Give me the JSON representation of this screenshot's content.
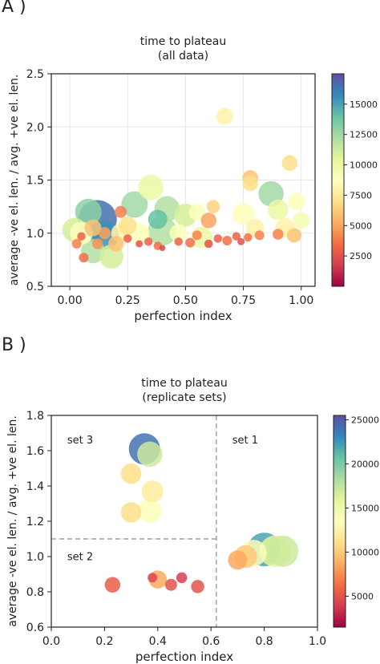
{
  "panels": [
    {
      "label": "A )"
    },
    {
      "label": "B )"
    }
  ],
  "chart_data": [
    {
      "type": "scatter",
      "title": "time to plateau",
      "subtitle": "(all data)",
      "xlabel": "perfection index",
      "ylabel": "average -ve el. len. / avg. +ve el. len.",
      "xlim": [
        -0.08,
        1.06
      ],
      "ylim": [
        0.5,
        2.5
      ],
      "xticks": [
        "0.00",
        "0.25",
        "0.50",
        "0.75",
        "1.00"
      ],
      "xtick_values": [
        0,
        0.25,
        0.5,
        0.75,
        1.0
      ],
      "yticks": [
        "0.5",
        "1.0",
        "1.5",
        "2.0",
        "2.5"
      ],
      "ytick_values": [
        0.5,
        1.0,
        1.5,
        2.0,
        2.5
      ],
      "colorbar": {
        "min": 0,
        "max": 17500,
        "ticks": [
          "2500",
          "5000",
          "7500",
          "10000",
          "12500",
          "15000"
        ],
        "tick_values": [
          2500,
          5000,
          7500,
          10000,
          12500,
          15000
        ],
        "colormap": "Spectral"
      },
      "grid": true,
      "points": [
        {
          "x": 0.12,
          "y": 1.13,
          "c": 16500,
          "s": 3.2
        },
        {
          "x": 0.15,
          "y": 0.98,
          "c": 15500,
          "s": 2.4
        },
        {
          "x": 0.08,
          "y": 1.2,
          "c": 13000,
          "s": 2.2
        },
        {
          "x": 0.02,
          "y": 1.03,
          "c": 11000,
          "s": 2.0
        },
        {
          "x": 0.05,
          "y": 1.0,
          "c": 9000,
          "s": 1.9
        },
        {
          "x": 0.1,
          "y": 0.83,
          "c": 12000,
          "s": 2.0
        },
        {
          "x": 0.18,
          "y": 0.78,
          "c": 11000,
          "s": 2.0
        },
        {
          "x": 0.2,
          "y": 0.9,
          "c": 6000,
          "s": 1.3
        },
        {
          "x": 0.28,
          "y": 1.27,
          "c": 12500,
          "s": 2.2
        },
        {
          "x": 0.35,
          "y": 1.43,
          "c": 10000,
          "s": 2.1
        },
        {
          "x": 0.38,
          "y": 1.13,
          "c": 14000,
          "s": 1.6
        },
        {
          "x": 0.42,
          "y": 1.23,
          "c": 12000,
          "s": 2.1
        },
        {
          "x": 0.4,
          "y": 1.02,
          "c": 12000,
          "s": 2.4
        },
        {
          "x": 0.3,
          "y": 1.0,
          "c": 9000,
          "s": 1.7
        },
        {
          "x": 0.25,
          "y": 1.07,
          "c": 7000,
          "s": 1.5
        },
        {
          "x": 0.22,
          "y": 1.2,
          "c": 4000,
          "s": 1.0
        },
        {
          "x": 0.5,
          "y": 1.17,
          "c": 11000,
          "s": 1.9
        },
        {
          "x": 0.55,
          "y": 1.2,
          "c": 9000,
          "s": 1.4
        },
        {
          "x": 0.6,
          "y": 1.12,
          "c": 5000,
          "s": 1.3
        },
        {
          "x": 0.62,
          "y": 1.25,
          "c": 6500,
          "s": 1.1
        },
        {
          "x": 0.57,
          "y": 0.96,
          "c": 10000,
          "s": 1.8
        },
        {
          "x": 0.67,
          "y": 2.1,
          "c": 8000,
          "s": 1.4
        },
        {
          "x": 0.78,
          "y": 1.52,
          "c": 6000,
          "s": 1.3
        },
        {
          "x": 0.78,
          "y": 1.47,
          "c": 7000,
          "s": 1.3
        },
        {
          "x": 0.87,
          "y": 1.37,
          "c": 12500,
          "s": 2.1
        },
        {
          "x": 0.95,
          "y": 1.66,
          "c": 7000,
          "s": 1.3
        },
        {
          "x": 0.98,
          "y": 1.3,
          "c": 9000,
          "s": 1.4
        },
        {
          "x": 0.9,
          "y": 1.22,
          "c": 10000,
          "s": 1.7
        },
        {
          "x": 1.0,
          "y": 1.12,
          "c": 9500,
          "s": 1.4
        },
        {
          "x": 0.93,
          "y": 1.05,
          "c": 8000,
          "s": 1.6
        },
        {
          "x": 0.75,
          "y": 1.18,
          "c": 9000,
          "s": 1.8
        },
        {
          "x": 0.8,
          "y": 1.05,
          "c": 8000,
          "s": 1.5
        },
        {
          "x": 0.97,
          "y": 0.98,
          "c": 6000,
          "s": 1.2
        },
        {
          "x": 0.9,
          "y": 0.99,
          "c": 4000,
          "s": 0.9
        },
        {
          "x": 0.05,
          "y": 0.97,
          "c": 3000,
          "s": 0.7
        },
        {
          "x": 0.03,
          "y": 0.9,
          "c": 4000,
          "s": 0.8
        },
        {
          "x": 0.06,
          "y": 0.77,
          "c": 3500,
          "s": 0.8
        },
        {
          "x": 0.12,
          "y": 0.9,
          "c": 4500,
          "s": 0.9
        },
        {
          "x": 0.15,
          "y": 1.0,
          "c": 5000,
          "s": 1.0
        },
        {
          "x": 0.25,
          "y": 0.95,
          "c": 3000,
          "s": 0.7
        },
        {
          "x": 0.3,
          "y": 0.9,
          "c": 2500,
          "s": 0.6
        },
        {
          "x": 0.34,
          "y": 0.92,
          "c": 3000,
          "s": 0.7
        },
        {
          "x": 0.38,
          "y": 0.88,
          "c": 3500,
          "s": 0.7
        },
        {
          "x": 0.4,
          "y": 0.86,
          "c": 2000,
          "s": 0.5
        },
        {
          "x": 0.47,
          "y": 0.92,
          "c": 3000,
          "s": 0.7
        },
        {
          "x": 0.52,
          "y": 0.91,
          "c": 3500,
          "s": 0.8
        },
        {
          "x": 0.55,
          "y": 0.98,
          "c": 4000,
          "s": 0.8
        },
        {
          "x": 0.6,
          "y": 0.9,
          "c": 2500,
          "s": 0.7
        },
        {
          "x": 0.64,
          "y": 0.95,
          "c": 3000,
          "s": 0.7
        },
        {
          "x": 0.68,
          "y": 0.93,
          "c": 3500,
          "s": 0.8
        },
        {
          "x": 0.72,
          "y": 0.97,
          "c": 3000,
          "s": 0.7
        },
        {
          "x": 0.74,
          "y": 0.92,
          "c": 2500,
          "s": 0.6
        },
        {
          "x": 0.77,
          "y": 0.96,
          "c": 3500,
          "s": 0.7
        },
        {
          "x": 0.82,
          "y": 0.98,
          "c": 4000,
          "s": 0.8
        },
        {
          "x": 0.22,
          "y": 1.0,
          "c": 8000,
          "s": 1.6
        },
        {
          "x": 0.47,
          "y": 1.0,
          "c": 9000,
          "s": 1.5
        },
        {
          "x": 0.1,
          "y": 1.05,
          "c": 6000,
          "s": 1.4
        }
      ]
    },
    {
      "type": "scatter",
      "title": "time to plateau",
      "subtitle": "(replicate sets)",
      "xlabel": "perfection index",
      "ylabel": "average -ve el. len. / avg. +ve el. len.",
      "xlim": [
        0.0,
        1.0
      ],
      "ylim": [
        0.6,
        1.8
      ],
      "xticks": [
        "0.0",
        "0.2",
        "0.4",
        "0.6",
        "0.8",
        "1.0"
      ],
      "xtick_values": [
        0.0,
        0.2,
        0.4,
        0.6,
        0.8,
        1.0
      ],
      "yticks": [
        "0.6",
        "0.8",
        "1.0",
        "1.2",
        "1.4",
        "1.6",
        "1.8"
      ],
      "ytick_values": [
        0.6,
        0.8,
        1.0,
        1.2,
        1.4,
        1.6,
        1.8
      ],
      "colorbar": {
        "min": 1500,
        "max": 25500,
        "ticks": [
          "5000",
          "10000",
          "15000",
          "20000",
          "25000"
        ],
        "tick_values": [
          5000,
          10000,
          15000,
          20000,
          25000
        ],
        "colormap": "Spectral"
      },
      "grid": false,
      "set_labels": [
        "set 3",
        "set 1",
        "set 2"
      ],
      "dividers": {
        "vertical_x": 0.62,
        "horizontal_y": 1.1
      },
      "points": [
        {
          "x": 0.35,
          "y": 1.61,
          "c": 24000,
          "s": 2.6
        },
        {
          "x": 0.37,
          "y": 1.58,
          "c": 17000,
          "s": 2.1
        },
        {
          "x": 0.3,
          "y": 1.47,
          "c": 11000,
          "s": 1.7
        },
        {
          "x": 0.38,
          "y": 1.37,
          "c": 12000,
          "s": 1.8
        },
        {
          "x": 0.3,
          "y": 1.25,
          "c": 11000,
          "s": 1.7
        },
        {
          "x": 0.37,
          "y": 1.26,
          "c": 14000,
          "s": 2.0
        },
        {
          "x": 0.23,
          "y": 0.84,
          "c": 5500,
          "s": 1.3
        },
        {
          "x": 0.38,
          "y": 0.88,
          "c": 4500,
          "s": 0.8
        },
        {
          "x": 0.4,
          "y": 0.87,
          "c": 8500,
          "s": 1.5
        },
        {
          "x": 0.45,
          "y": 0.84,
          "c": 5000,
          "s": 1.0
        },
        {
          "x": 0.49,
          "y": 0.88,
          "c": 4000,
          "s": 0.9
        },
        {
          "x": 0.55,
          "y": 0.83,
          "c": 5000,
          "s": 1.1
        },
        {
          "x": 0.7,
          "y": 0.98,
          "c": 8500,
          "s": 1.6
        },
        {
          "x": 0.73,
          "y": 1.0,
          "c": 10000,
          "s": 1.9
        },
        {
          "x": 0.76,
          "y": 1.02,
          "c": 14000,
          "s": 2.2
        },
        {
          "x": 0.84,
          "y": 1.03,
          "c": 16000,
          "s": 2.6
        },
        {
          "x": 0.87,
          "y": 1.03,
          "c": 17000,
          "s": 2.6
        },
        {
          "x": 0.8,
          "y": 1.04,
          "c": 22000,
          "s": 2.8
        }
      ]
    }
  ]
}
